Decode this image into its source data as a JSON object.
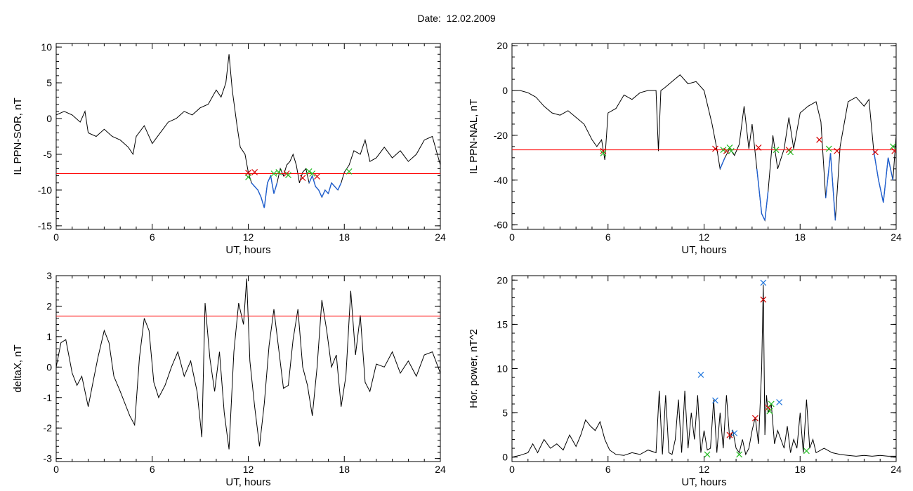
{
  "header": {
    "date_label": "Date:",
    "date_value": "12.02.2009"
  },
  "colors": {
    "trace": "#000000",
    "threshold": "#ff0000",
    "event_trace": "#1f5fd0",
    "marker_red": "#d40000",
    "marker_green": "#22bb22",
    "marker_blue": "#2277dd"
  },
  "chart_data": [
    {
      "id": "sor",
      "type": "line",
      "ylabel": "IL PPN-SOR, nT",
      "xlabel": "UT, hours",
      "xlim": [
        0,
        24
      ],
      "ylim": [
        -15.5,
        10.5
      ],
      "xticks": [
        0,
        6,
        12,
        18,
        24
      ],
      "yticks": [
        -15,
        -10,
        -5,
        0,
        5,
        10
      ],
      "yminor": 1,
      "threshold": -7.7,
      "series": [
        {
          "x": [
            0,
            0.5,
            1,
            1.5,
            1.8,
            2,
            2.5,
            3,
            3.5,
            4,
            4.5,
            4.8,
            5,
            5.5,
            6,
            6.5,
            7,
            7.5,
            8,
            8.5,
            9,
            9.5,
            10,
            10.3,
            10.6,
            10.8,
            11,
            11.3,
            11.5,
            11.8,
            12,
            12.2,
            12.4,
            12.6,
            12.8,
            13,
            13.2,
            13.4,
            13.6,
            13.8,
            14,
            14.2,
            14.4,
            14.6,
            14.8,
            15,
            15.2,
            15.4,
            15.6,
            15.8,
            16,
            16.2,
            16.4,
            16.6,
            16.8,
            17,
            17.2,
            17.4,
            17.6,
            17.8,
            18,
            18.3,
            18.6,
            19,
            19.3,
            19.6,
            20,
            20.5,
            21,
            21.5,
            22,
            22.5,
            23,
            23.5,
            24
          ],
          "y": [
            0.5,
            1,
            0.5,
            -0.5,
            1,
            -2,
            -2.5,
            -1.5,
            -2.5,
            -3,
            -4,
            -5,
            -2.5,
            -1,
            -3.5,
            -2,
            -0.5,
            0,
            1,
            0.5,
            1.5,
            2,
            4,
            3,
            5,
            9,
            4,
            -1,
            -4,
            -5,
            -7.5,
            -9,
            -9.5,
            -10,
            -11,
            -12.5,
            -9,
            -8,
            -10.5,
            -9,
            -7,
            -8,
            -6.5,
            -6,
            -5,
            -6.5,
            -9,
            -7.5,
            -7,
            -9,
            -8,
            -9.5,
            -10,
            -11,
            -10,
            -10.5,
            -9,
            -9.5,
            -10,
            -9,
            -7.5,
            -6.5,
            -4.5,
            -5,
            -3,
            -6,
            -5.5,
            -4,
            -5.5,
            -4.5,
            -6,
            -5,
            -3,
            -2.5,
            -6.5
          ]
        }
      ],
      "markers": [
        {
          "x": 12.0,
          "y": -7.6,
          "color": "red"
        },
        {
          "x": 12.4,
          "y": -7.5,
          "color": "red"
        },
        {
          "x": 12.0,
          "y": -8.2,
          "color": "green"
        },
        {
          "x": 13.6,
          "y": -7.7,
          "color": "green"
        },
        {
          "x": 13.9,
          "y": -7.5,
          "color": "green"
        },
        {
          "x": 14.4,
          "y": -7.7,
          "color": "red"
        },
        {
          "x": 14.5,
          "y": -7.9,
          "color": "green"
        },
        {
          "x": 15.4,
          "y": -8.3,
          "color": "red"
        },
        {
          "x": 15.8,
          "y": -7.4,
          "color": "green"
        },
        {
          "x": 16.0,
          "y": -7.7,
          "color": "green"
        },
        {
          "x": 16.3,
          "y": -8.1,
          "color": "red"
        },
        {
          "x": 18.3,
          "y": -7.4,
          "color": "green"
        }
      ]
    },
    {
      "id": "nal",
      "type": "line",
      "ylabel": "IL PPN-NAL, nT",
      "xlabel": "UT, hours",
      "xlim": [
        0,
        24
      ],
      "ylim": [
        -62,
        21
      ],
      "xticks": [
        0,
        6,
        12,
        18,
        24
      ],
      "yticks": [
        -60,
        -40,
        -20,
        0,
        20
      ],
      "yminor": 5,
      "threshold": -26.5,
      "series": [
        {
          "x": [
            0,
            0.5,
            1,
            1.5,
            2,
            2.5,
            3,
            3.5,
            4,
            4.5,
            5,
            5.3,
            5.6,
            5.8,
            6,
            6.5,
            7,
            7.5,
            8,
            8.5,
            9,
            9.15,
            9.3,
            9.5,
            10,
            10.5,
            11,
            11.5,
            12,
            12.5,
            12.8,
            13,
            13.3,
            13.6,
            13.9,
            14.2,
            14.5,
            14.8,
            15,
            15.3,
            15.6,
            15.8,
            16,
            16.3,
            16.6,
            17,
            17.3,
            17.6,
            18,
            18.5,
            19,
            19.3,
            19.6,
            19.9,
            20.2,
            20.5,
            21,
            21.5,
            22,
            22.3,
            22.6,
            22.9,
            23.2,
            23.5,
            23.8,
            24
          ],
          "y": [
            0,
            0,
            -1,
            -3,
            -7,
            -10,
            -11,
            -9,
            -12,
            -15,
            -22,
            -25,
            -22,
            -31,
            -10,
            -8,
            -2,
            -4,
            -1,
            0,
            0,
            -27,
            0,
            1,
            4,
            7,
            3,
            4,
            0,
            -15,
            -26,
            -35,
            -30,
            -26,
            -29,
            -24,
            -7,
            -26,
            -15,
            -35,
            -55,
            -58,
            -45,
            -20,
            -35,
            -26,
            -12,
            -26,
            -10,
            -7,
            -5,
            -14,
            -48,
            -28,
            -58,
            -25,
            -5,
            -3,
            -7,
            -4,
            -27,
            -40,
            -50,
            -30,
            -40,
            -20
          ],
          "event_ranges": [
            [
              12.4,
              14.5
            ],
            [
              15.2,
              17.6
            ],
            [
              19.0,
              20.8
            ],
            [
              22.6,
              24.0
            ]
          ]
        }
      ],
      "markers": [
        {
          "x": 5.7,
          "y": -27,
          "color": "red"
        },
        {
          "x": 5.7,
          "y": -28,
          "color": "green"
        },
        {
          "x": 12.7,
          "y": -26,
          "color": "red"
        },
        {
          "x": 13.2,
          "y": -26.5,
          "color": "green"
        },
        {
          "x": 13.4,
          "y": -27,
          "color": "red"
        },
        {
          "x": 13.6,
          "y": -25.5,
          "color": "green"
        },
        {
          "x": 13.7,
          "y": -27,
          "color": "green"
        },
        {
          "x": 15.4,
          "y": -25.5,
          "color": "red"
        },
        {
          "x": 16.5,
          "y": -26.5,
          "color": "green"
        },
        {
          "x": 17.3,
          "y": -26.5,
          "color": "red"
        },
        {
          "x": 17.4,
          "y": -27.5,
          "color": "green"
        },
        {
          "x": 19.2,
          "y": -22,
          "color": "red"
        },
        {
          "x": 19.8,
          "y": -26,
          "color": "green"
        },
        {
          "x": 20.3,
          "y": -27,
          "color": "red"
        },
        {
          "x": 22.7,
          "y": -27.5,
          "color": "red"
        },
        {
          "x": 23.8,
          "y": -25,
          "color": "green"
        },
        {
          "x": 23.9,
          "y": -27,
          "color": "red"
        }
      ]
    },
    {
      "id": "deltax",
      "type": "line",
      "ylabel": "deltaX, nT",
      "xlabel": "UT, hours",
      "xlim": [
        0,
        24
      ],
      "ylim": [
        -3.1,
        3.0
      ],
      "xticks": [
        0,
        6,
        12,
        18,
        24
      ],
      "yticks": [
        -3,
        -2,
        -1,
        0,
        1,
        2,
        3
      ],
      "yminor": 0.2,
      "threshold": 1.67,
      "series": [
        {
          "x": [
            0,
            0.3,
            0.6,
            1,
            1.3,
            1.6,
            2,
            2.3,
            2.6,
            3,
            3.3,
            3.6,
            4,
            4.3,
            4.6,
            4.9,
            5.2,
            5.5,
            5.8,
            6.1,
            6.4,
            6.8,
            7.2,
            7.6,
            8,
            8.4,
            8.8,
            9.1,
            9.3,
            9.6,
            9.9,
            10.2,
            10.5,
            10.8,
            11.1,
            11.4,
            11.7,
            11.9,
            12.1,
            12.4,
            12.7,
            13,
            13.3,
            13.6,
            13.9,
            14.2,
            14.5,
            14.8,
            15.1,
            15.4,
            15.7,
            16,
            16.3,
            16.6,
            16.9,
            17.2,
            17.5,
            17.8,
            18.1,
            18.4,
            18.7,
            19,
            19.3,
            19.6,
            20,
            20.5,
            21,
            21.5,
            22,
            22.5,
            23,
            23.5,
            24
          ],
          "y": [
            0,
            0.8,
            0.9,
            -0.2,
            -0.6,
            -0.3,
            -1.3,
            -0.5,
            0.3,
            1.2,
            0.8,
            -0.3,
            -0.8,
            -1.2,
            -1.6,
            -1.9,
            0.3,
            1.6,
            1.2,
            -0.5,
            -1,
            -0.6,
            0,
            0.5,
            -0.3,
            0.2,
            -0.8,
            -2.3,
            2.1,
            0.3,
            -0.8,
            0.5,
            -1.5,
            -2.7,
            0.5,
            2.1,
            1.4,
            2.9,
            0.2,
            -1.3,
            -2.6,
            -1.2,
            0.7,
            1.9,
            0.6,
            -0.7,
            -0.6,
            0.9,
            1.9,
            0,
            -0.6,
            -1.6,
            0,
            2.2,
            1.2,
            0,
            0.4,
            -1.3,
            -0.3,
            2.5,
            0.4,
            1.7,
            -0.5,
            -0.8,
            0.1,
            0,
            0.5,
            -0.2,
            0.2,
            -0.3,
            0.4,
            0.5,
            -0.2
          ]
        }
      ],
      "markers": []
    },
    {
      "id": "power",
      "type": "line",
      "ylabel": "Hor. power, nT^2",
      "xlabel": "UT, hours",
      "xlim": [
        0,
        24
      ],
      "ylim": [
        -0.5,
        20.5
      ],
      "xticks": [
        0,
        6,
        12,
        18,
        24
      ],
      "yticks": [
        0,
        5,
        10,
        15,
        20
      ],
      "yminor": 1,
      "threshold": null,
      "series": [
        {
          "x": [
            0,
            0.5,
            1,
            1.3,
            1.6,
            2,
            2.4,
            2.8,
            3.2,
            3.6,
            4,
            4.3,
            4.6,
            4.9,
            5.2,
            5.5,
            5.8,
            6.1,
            6.5,
            7,
            7.5,
            8,
            8.5,
            9,
            9.2,
            9.4,
            9.6,
            9.8,
            10,
            10.2,
            10.4,
            10.6,
            10.8,
            11,
            11.2,
            11.4,
            11.6,
            11.8,
            12,
            12.2,
            12.4,
            12.6,
            12.8,
            13,
            13.2,
            13.4,
            13.6,
            13.8,
            14,
            14.2,
            14.4,
            14.6,
            14.8,
            15,
            15.2,
            15.4,
            15.6,
            15.7,
            15.8,
            15.9,
            16,
            16.2,
            16.4,
            16.6,
            16.8,
            17,
            17.2,
            17.4,
            17.6,
            17.8,
            18,
            18.2,
            18.4,
            18.6,
            18.8,
            19,
            19.5,
            20,
            20.5,
            21,
            21.5,
            22,
            22.5,
            23,
            23.5,
            24
          ],
          "y": [
            0,
            0.2,
            0.5,
            1.5,
            0.5,
            2,
            1,
            1.5,
            0.8,
            2.5,
            1.2,
            2.5,
            4.2,
            3.5,
            3,
            4,
            2,
            0.8,
            0.3,
            0.2,
            0.5,
            0.3,
            0.8,
            0.5,
            7.5,
            0.3,
            7,
            0.5,
            0.3,
            2,
            6.5,
            0.5,
            7.5,
            1,
            5,
            2,
            7,
            0.5,
            3,
            0.8,
            1,
            6.5,
            0.5,
            5,
            1,
            7,
            2,
            3,
            1,
            0.5,
            2,
            0.3,
            1,
            3,
            4.5,
            1.5,
            10,
            19.5,
            2.5,
            7,
            5,
            6,
            1.5,
            3,
            2,
            1,
            3.5,
            0.5,
            2,
            1,
            5,
            0.5,
            6.5,
            1,
            2,
            0.5,
            1,
            0.5,
            0.3,
            0.2,
            0.1,
            0.2,
            0.1,
            0.2,
            0.1,
            0.1
          ]
        }
      ],
      "markers": [
        {
          "x": 11.8,
          "y": 9.3,
          "color": "blue"
        },
        {
          "x": 12.7,
          "y": 6.4,
          "color": "blue"
        },
        {
          "x": 12.2,
          "y": 0.3,
          "color": "green"
        },
        {
          "x": 13.6,
          "y": 2.5,
          "color": "red"
        },
        {
          "x": 13.9,
          "y": 2.7,
          "color": "blue"
        },
        {
          "x": 14.2,
          "y": 0.3,
          "color": "green"
        },
        {
          "x": 15.2,
          "y": 4.4,
          "color": "red"
        },
        {
          "x": 15.7,
          "y": 19.7,
          "color": "blue"
        },
        {
          "x": 15.7,
          "y": 17.8,
          "color": "red"
        },
        {
          "x": 16.0,
          "y": 5.6,
          "color": "red"
        },
        {
          "x": 16.1,
          "y": 5.2,
          "color": "green"
        },
        {
          "x": 16.2,
          "y": 6.0,
          "color": "green"
        },
        {
          "x": 16.7,
          "y": 6.2,
          "color": "blue"
        },
        {
          "x": 18.4,
          "y": 0.7,
          "color": "green"
        }
      ]
    }
  ]
}
